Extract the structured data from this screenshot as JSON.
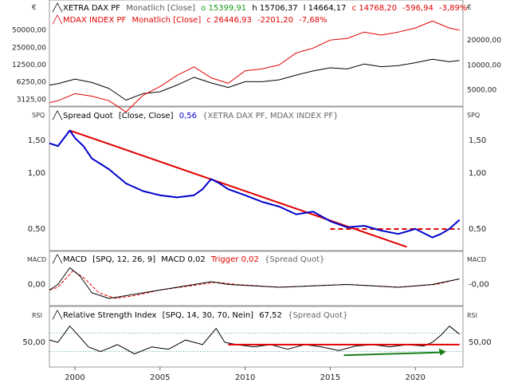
{
  "panels": {
    "price": {
      "left_unit": "€",
      "right_unit": "€",
      "legend_line1": {
        "name": "XETRA DAX PF",
        "meta": "Monatlich [Close]",
        "o": "o 15399,91",
        "h": "h 15706,37",
        "l": "l 14664,17",
        "c": "c 14768,20",
        "chg": "-596,94",
        "pct": "-3,89%"
      },
      "legend_line2": {
        "name": "MDAX INDEX PF",
        "meta": "Monatlich [Close]",
        "c": "c 26446,93",
        "chg": "-2201,20",
        "pct": "-7,68%"
      }
    },
    "spread": {
      "left_unit": "SPQ",
      "right_unit": "SPQ",
      "legend": {
        "name": "Spread Quot",
        "meta": "[Close, Close]",
        "value": "0,56",
        "source": "{XETRA DAX PF, MDAX INDEX PF}"
      }
    },
    "macd": {
      "left_unit": "MACD",
      "right_unit": "MACD",
      "legend": {
        "name": "MACD",
        "params": "[SPQ, 12, 26, 9]",
        "value": "MACD 0,02",
        "trigger": "Trigger 0,02",
        "source": "{Spread Quot}"
      }
    },
    "rsi": {
      "left_unit": "RSI",
      "right_unit": "RSI",
      "legend": {
        "name": "Relative Strength Index",
        "params": "[SPQ, 14, 30, 70, Nein]",
        "value": "67,52",
        "source": "{Spread Quot}"
      }
    }
  },
  "colors": {
    "dax": "#000000",
    "mdax": "#e00000",
    "spread": "#0000cc",
    "trend": "#e00000",
    "arrow": "#1a7f1a",
    "macd": "#000000",
    "trigger": "#e00000",
    "rsi_band": "#2a8a8a"
  },
  "chart_data": [
    {
      "type": "line",
      "panel": "price",
      "y_scale": "log",
      "left_ticks": [
        "50000,00",
        "25000,00",
        "12500,00",
        "6250,00",
        "3125,00"
      ],
      "right_ticks": [
        "20000,00",
        "10000,00",
        "5000,00"
      ],
      "series": [
        {
          "name": "XETRA DAX PF",
          "axis": "left",
          "x": [
            1998.5,
            1999,
            2000,
            2001,
            2002,
            2003,
            2004,
            2005,
            2006,
            2007,
            2008,
            2009,
            2010,
            2011,
            2012,
            2013,
            2014,
            2015,
            2016,
            2017,
            2018,
            2019,
            2020,
            2021,
            2022,
            2022.6
          ],
          "values": [
            5500,
            5800,
            7000,
            6100,
            4800,
            3000,
            3900,
            4200,
            5500,
            7500,
            6000,
            5000,
            6300,
            6300,
            6800,
            8200,
            9700,
            11000,
            10500,
            12800,
            11500,
            12000,
            13500,
            15500,
            14000,
            14768
          ]
        },
        {
          "name": "MDAX INDEX PF",
          "axis": "right",
          "x": [
            1998.5,
            1999,
            2000,
            2001,
            2002,
            2003,
            2004,
            2005,
            2006,
            2007,
            2008,
            2009,
            2010,
            2011,
            2012,
            2013,
            2014,
            2015,
            2016,
            2017,
            2018,
            2019,
            2020,
            2021,
            2022,
            2022.6
          ],
          "values": [
            3500,
            3700,
            4500,
            4200,
            3700,
            2700,
            4300,
            5500,
            7500,
            9500,
            7000,
            6000,
            8500,
            9000,
            10000,
            14000,
            16000,
            20000,
            21000,
            25000,
            23000,
            25000,
            28000,
            34000,
            28000,
            26447
          ]
        }
      ]
    },
    {
      "type": "line",
      "panel": "spread",
      "y_scale": "log",
      "ticks": [
        "1,50",
        "1,00",
        "0,50"
      ],
      "series": [
        {
          "name": "Spread Quot",
          "x": [
            1998.5,
            1999,
            1999.7,
            2000,
            2000.5,
            2001,
            2002,
            2003,
            2004,
            2005,
            2006,
            2007,
            2007.5,
            2008,
            2008.5,
            2009,
            2010,
            2011,
            2012,
            2013,
            2014,
            2015,
            2016,
            2017,
            2018,
            2019,
            2020,
            2021,
            2021.5,
            2022,
            2022.6
          ],
          "values": [
            1.45,
            1.4,
            1.7,
            1.55,
            1.4,
            1.2,
            1.05,
            0.88,
            0.8,
            0.76,
            0.74,
            0.76,
            0.82,
            0.93,
            0.88,
            0.82,
            0.76,
            0.7,
            0.66,
            0.6,
            0.62,
            0.55,
            0.51,
            0.52,
            0.49,
            0.47,
            0.5,
            0.45,
            0.47,
            0.5,
            0.56
          ]
        }
      ],
      "trendline": {
        "x": [
          1999.7,
          2019.5
        ],
        "values": [
          1.7,
          0.4
        ]
      },
      "support": {
        "x": [
          2015,
          2022.6
        ],
        "values": [
          0.5,
          0.5
        ]
      }
    },
    {
      "type": "line",
      "panel": "macd",
      "ticks": [
        "0,00",
        "-0,00"
      ],
      "series": [
        {
          "name": "MACD",
          "x": [
            1998.5,
            1999,
            1999.7,
            2000.3,
            2001,
            2002,
            2003,
            2005,
            2008,
            2009,
            2012,
            2016,
            2019,
            2021,
            2022.6
          ],
          "values": [
            -0.02,
            0.0,
            0.06,
            0.03,
            -0.03,
            -0.05,
            -0.04,
            -0.02,
            0.01,
            0.0,
            -0.01,
            0.0,
            -0.01,
            0.0,
            0.02
          ]
        },
        {
          "name": "Trigger",
          "x": [
            1998.5,
            1999,
            1999.9,
            2000.6,
            2001.4,
            2002.4,
            2003.5,
            2005,
            2008.3,
            2009.5,
            2012,
            2016,
            2019,
            2021.2,
            2022.6
          ],
          "values": [
            -0.02,
            -0.01,
            0.05,
            0.02,
            -0.03,
            -0.05,
            -0.04,
            -0.02,
            0.008,
            0.0,
            -0.01,
            0.0,
            -0.01,
            0.0,
            0.02
          ]
        }
      ]
    },
    {
      "type": "line",
      "panel": "rsi",
      "ylim": [
        0,
        100
      ],
      "ticks": [
        "50,00"
      ],
      "bands": [
        30,
        70
      ],
      "series": [
        {
          "name": "Relative Strength Index",
          "x": [
            1998.5,
            1999,
            1999.7,
            2000.2,
            2000.8,
            2001.5,
            2002.5,
            2003.5,
            2004.5,
            2005.5,
            2006.5,
            2007.5,
            2008.3,
            2008.8,
            2009.5,
            2010.5,
            2011.5,
            2012.5,
            2013.5,
            2014.5,
            2015.5,
            2016.5,
            2017.5,
            2018.5,
            2019.5,
            2020.5,
            2021,
            2021.5,
            2022,
            2022.6
          ],
          "values": [
            55,
            50,
            85,
            65,
            40,
            30,
            45,
            25,
            40,
            35,
            55,
            45,
            80,
            50,
            45,
            40,
            45,
            35,
            45,
            40,
            32,
            42,
            45,
            40,
            45,
            42,
            50,
            65,
            85,
            67.52
          ]
        }
      ],
      "trendline": {
        "x": [
          2009,
          2022.6
        ],
        "values": [
          45,
          45
        ]
      },
      "arrow": {
        "x": [
          2015.8,
          2021.8
        ],
        "values": [
          22,
          30
        ]
      }
    }
  ],
  "x_axis": {
    "range": [
      1998.5,
      2022.8
    ],
    "ticks": [
      {
        "x": 2000,
        "label": "2000"
      },
      {
        "x": 2005,
        "label": "2005"
      },
      {
        "x": 2010,
        "label": "2010"
      },
      {
        "x": 2015,
        "label": "2015"
      },
      {
        "x": 2020,
        "label": "2020"
      }
    ]
  }
}
